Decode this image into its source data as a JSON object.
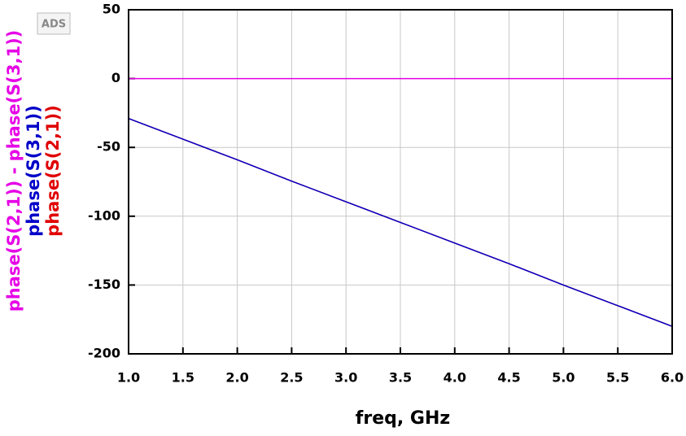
{
  "logo": "ADS",
  "chart_data": {
    "type": "line",
    "x_label": "freq, GHz",
    "x": [
      1.0,
      1.5,
      2.0,
      2.5,
      3.0,
      3.5,
      4.0,
      4.5,
      5.0,
      5.5,
      6.0
    ],
    "series": [
      {
        "name": "phase(S(2,1)) - phase(S(3,1))",
        "color": "#e600e6",
        "values": [
          0,
          0,
          0,
          0,
          0,
          0,
          0,
          0,
          0,
          0,
          0
        ]
      },
      {
        "name": "phase(S(3,1))",
        "color": "#0000c8",
        "values": [
          -29,
          -44,
          -59,
          -74.5,
          -89.5,
          -104.5,
          -119.5,
          -134.5,
          -150,
          -165,
          -180
        ]
      },
      {
        "name": "phase(S(2,1))",
        "color": "#e00000",
        "values": [
          -29,
          -44,
          -59,
          -74.5,
          -89.5,
          -104.5,
          -119.5,
          -134.5,
          -150,
          -165,
          -180
        ]
      }
    ],
    "xlim": [
      1.0,
      6.0
    ],
    "xticks": [
      {
        "value": 1.0,
        "label": "1.0"
      },
      {
        "value": 1.5,
        "label": "1.5"
      },
      {
        "value": 2.0,
        "label": "2.0"
      },
      {
        "value": 2.5,
        "label": "2.5"
      },
      {
        "value": 3.0,
        "label": "3.0"
      },
      {
        "value": 3.5,
        "label": "3.5"
      },
      {
        "value": 4.0,
        "label": "4.0"
      },
      {
        "value": 4.5,
        "label": "4.5"
      },
      {
        "value": 5.0,
        "label": "5.0"
      },
      {
        "value": 5.5,
        "label": "5.5"
      },
      {
        "value": 6.0,
        "label": "6.0"
      }
    ],
    "ylim": [
      -200,
      50
    ],
    "yticks": [
      50,
      0,
      -50,
      -100,
      -150,
      -200
    ],
    "grid": true
  }
}
